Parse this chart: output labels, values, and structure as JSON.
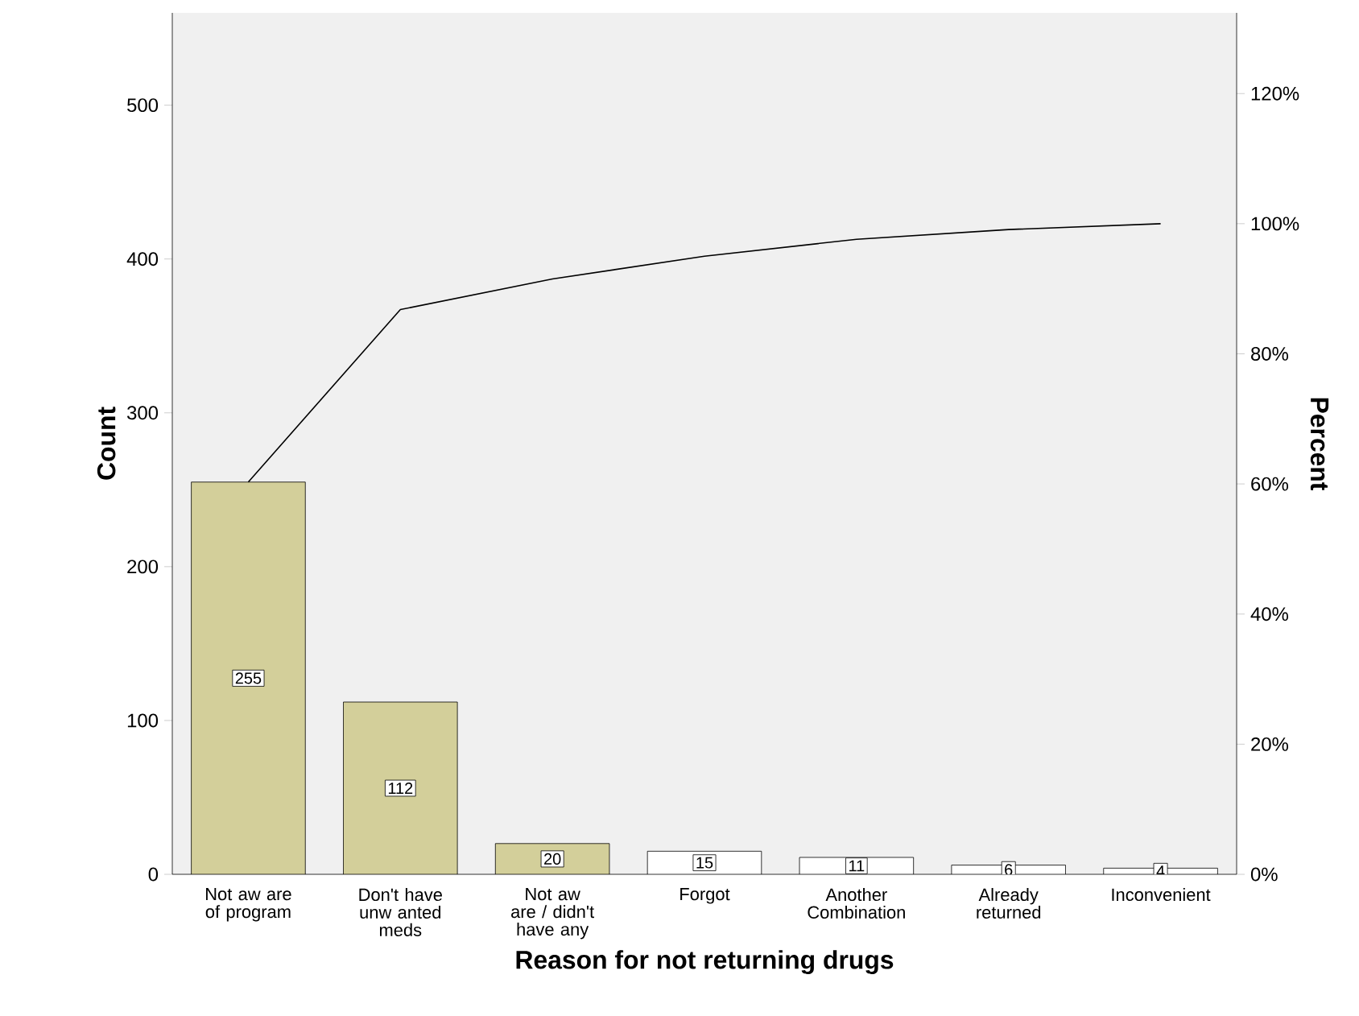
{
  "chart_data": {
    "type": "bar",
    "xlabel": "Reason for not returning drugs",
    "ylabel": "Count",
    "y2label": "Percent",
    "categories": [
      "Not aw are of program",
      "Don't have unw anted meds",
      "Not aw are / didn't have any",
      "Forgot",
      "Another Combination",
      "Already returned",
      "Inconvenient"
    ],
    "series": [
      {
        "colors": [
          "#d3cf9a",
          "#d3cf9a",
          "#d3cf9a",
          "#ffffff",
          "#ffffff",
          "#ffffff",
          "#ffffff"
        ],
        "values": [
          255,
          112,
          20,
          15,
          11,
          6,
          4
        ],
        "value_labels": [
          "255",
          "112",
          "20",
          "15",
          "11",
          "6",
          "4"
        ]
      },
      {
        "type": "line",
        "axis": "y2",
        "color": "#000000",
        "values": [
          60.3,
          86.8,
          91.5,
          95.0,
          97.6,
          99.1,
          100
        ]
      }
    ],
    "ylim": [
      0,
      560
    ],
    "yticks": [
      0,
      100,
      200,
      300,
      400,
      500
    ],
    "y2lim": [
      0,
      132.4
    ],
    "y2ticks": [
      {
        "value": 0,
        "label": "0%"
      },
      {
        "value": 20,
        "label": "20%"
      },
      {
        "value": 40,
        "label": "40%"
      },
      {
        "value": 60,
        "label": "60%"
      },
      {
        "value": 80,
        "label": "80%"
      },
      {
        "value": 100,
        "label": "100%"
      },
      {
        "value": 120,
        "label": "120%"
      }
    ],
    "grid": false
  }
}
